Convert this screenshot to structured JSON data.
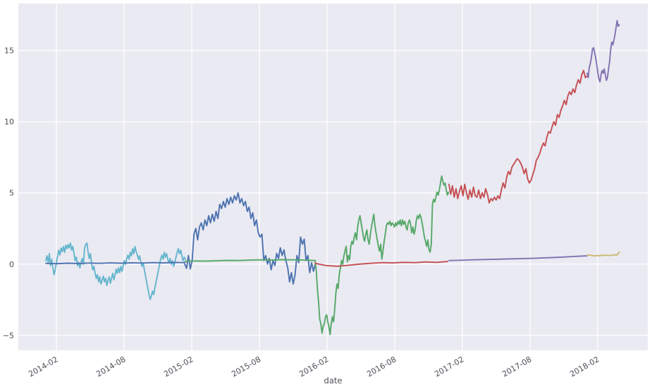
{
  "chart_data": {
    "type": "line",
    "title": "",
    "xlabel": "date",
    "ylabel": "",
    "x_unit": "months (1 = 2014-02, 49 = 2018-02)",
    "xlim": [
      -2.38,
      53.44
    ],
    "ylim": [
      -6.05,
      18.3
    ],
    "grid": true,
    "legend": false,
    "x_ticks": [
      {
        "x": 1,
        "label": "2014-02"
      },
      {
        "x": 7,
        "label": "2014-08"
      },
      {
        "x": 13,
        "label": "2015-02"
      },
      {
        "x": 19,
        "label": "2015-08"
      },
      {
        "x": 25,
        "label": "2016-02"
      },
      {
        "x": 31,
        "label": "2016-08"
      },
      {
        "x": 37,
        "label": "2017-02"
      },
      {
        "x": 43,
        "label": "2017-08"
      },
      {
        "x": 49,
        "label": "2018-02"
      }
    ],
    "y_ticks": [
      {
        "y": -5,
        "label": "−5"
      },
      {
        "y": 0,
        "label": "0"
      },
      {
        "y": 5,
        "label": "5"
      },
      {
        "y": 10,
        "label": "10"
      },
      {
        "y": 15,
        "label": "15"
      }
    ],
    "style": {
      "figure_bg": "#ffffff",
      "axes_bg": "#eaeaf2",
      "grid_color": "#ffffff",
      "grid_width": 1.25,
      "tick_color": "#4d4d57",
      "line_width": 1.9
    },
    "series": [
      {
        "name": "2014-lightblue",
        "color": "#64b5cd",
        "segments": [
          {
            "x0": 0.06,
            "dx": 0.104,
            "v": [
              0.24,
              0.58,
              0.09,
              0.73,
              -0.11,
              0.34,
              -0.26,
              -0.75,
              -0.41,
              0.09,
              0.58,
              0.98,
              0.63,
              1.13,
              0.88,
              1.23,
              0.83,
              1.33,
              1.08,
              1.38,
              1.13,
              1.48,
              0.98,
              1.23,
              0.73,
              0.24,
              0.49,
              -0.11,
              0.14,
              -0.26,
              0.09,
              0.39,
              -0.01,
              1.08,
              1.38,
              1.48,
              0.88,
              0.39,
              0.73,
              0.09,
              -0.41,
              -0.16,
              -0.65,
              -1.0,
              -0.75,
              -1.25,
              -0.9,
              -1.4,
              -1.1,
              -0.85,
              -1.25,
              -1.0,
              -1.5,
              -1.15,
              -0.9,
              -1.35,
              -1.0,
              -0.65,
              -1.1,
              -0.75,
              -0.36,
              -0.65,
              -0.26,
              -0.6,
              -0.16,
              -0.5,
              -0.11,
              0.24,
              -0.01,
              0.39,
              0.63,
              0.34,
              0.83,
              0.58,
              1.08,
              0.73,
              1.23,
              0.88,
              0.63,
              0.34,
              0.58,
              0.14,
              -0.16,
              0.09,
              -0.41,
              -0.85,
              -1.25,
              -1.74,
              -2.14,
              -2.48,
              -2.24,
              -1.89,
              -2.14,
              -1.64,
              -1.25,
              -0.85,
              -0.41,
              -0.01,
              0.39,
              0.63,
              0.34,
              0.83,
              0.49,
              0.73,
              0.34,
              0.09,
              0.39,
              -0.01,
              0.24,
              -0.16,
              0.14,
              0.49,
              0.83,
              1.08,
              0.73,
              0.98,
              0.58,
              0.24,
              0.49,
              0.34
            ]
          }
        ]
      },
      {
        "name": "2015-blue",
        "color": "#4c72b0",
        "segments": [
          {
            "x0": 0.06,
            "dx": 0.95,
            "v": [
              0.05,
              0.03,
              0.06,
              0.04,
              0.07,
              0.05,
              0.08,
              0.06,
              0.09,
              0.07,
              0.1,
              0.08,
              0.11,
              0.1
            ]
          },
          {
            "x0": 12.38,
            "dx": 0.163,
            "v": [
              0.0,
              -0.3,
              0.6,
              -0.35,
              0.25,
              2.1,
              2.5,
              1.7,
              2.6,
              2.9,
              2.4,
              3.1,
              2.7,
              3.4,
              2.9,
              3.5,
              3.0,
              3.7,
              3.2,
              4.2,
              3.9,
              4.4,
              4.0,
              4.6,
              4.2,
              4.7,
              4.3,
              4.8,
              4.5,
              5.0,
              4.3,
              4.6,
              4.1,
              4.4,
              3.7,
              4.0,
              3.2,
              3.6,
              2.7,
              3.1,
              2.2,
              1.9,
              2.1,
              0.25,
              0.6,
              0.0,
              0.4,
              -0.4,
              0.25,
              -0.1,
              0.75,
              0.4,
              1.15,
              0.6,
              1.0,
              0.25,
              -0.25,
              -1.25,
              -0.6,
              -1.4,
              -0.75,
              0.6,
              0.1,
              1.9,
              1.4,
              1.75,
              0.25,
              0.6,
              -0.6,
              0.1,
              -0.5,
              0.0
            ]
          }
        ]
      },
      {
        "name": "2016-green",
        "color": "#55a868",
        "segments": [
          {
            "x0": 12.4,
            "dx": 0.96,
            "v": [
              0.2,
              0.22,
              0.21,
              0.24,
              0.26,
              0.25,
              0.28,
              0.3,
              0.29,
              0.31,
              0.3,
              0.28,
              0.25
            ]
          },
          {
            "x0": 23.94,
            "dx": 0.102,
            "v": [
              0.25,
              -0.5,
              -1.7,
              -2.7,
              -3.86,
              -4.2,
              -4.85,
              -4.36,
              -4.2,
              -3.7,
              -3.56,
              -4.06,
              -4.36,
              -4.95,
              -4.2,
              -3.7,
              -4.06,
              -3.2,
              -2.08,
              -1.4,
              -1.7,
              -0.75,
              -0.25,
              0.25,
              0.0,
              0.6,
              0.9,
              1.25,
              0.15,
              0.6,
              0.3,
              1.25,
              1.6,
              1.4,
              1.9,
              2.2,
              1.7,
              2.6,
              3.1,
              3.4,
              2.9,
              2.4,
              1.9,
              1.6,
              2.1,
              2.4,
              1.7,
              1.4,
              2.1,
              2.6,
              3.1,
              3.5,
              2.7,
              2.2,
              1.7,
              1.25,
              0.9,
              1.4,
              0.35,
              0.9,
              1.6,
              2.1,
              2.7,
              2.9,
              2.8,
              3.0,
              2.7,
              2.9,
              2.8,
              2.6,
              2.9,
              2.7,
              3.0,
              2.8,
              3.1,
              2.7,
              3.1,
              2.8,
              3.0,
              2.6,
              2.4,
              2.9,
              3.1,
              2.8,
              2.2,
              2.6,
              2.1,
              2.4,
              3.1,
              3.4,
              3.2,
              3.5,
              3.3,
              2.9,
              2.4,
              1.9,
              1.6,
              1.25,
              1.7,
              1.0,
              0.84,
              1.4,
              4.2,
              4.55,
              4.36,
              4.7,
              5.05,
              4.85,
              5.2,
              5.69,
              6.19,
              5.84,
              5.54,
              5.69,
              5.2,
              4.85,
              5.05
            ]
          }
        ]
      },
      {
        "name": "2017-red",
        "color": "#c44e52",
        "segments": [
          {
            "x0": 23.94,
            "dx": 0.98,
            "v": [
              0.05,
              -0.1,
              -0.15,
              -0.08,
              0.0,
              0.05,
              0.1,
              0.08,
              0.12,
              0.1,
              0.15,
              0.12,
              0.18
            ]
          },
          {
            "x0": 35.81,
            "dx": 0.155,
            "v": [
              5.6,
              4.9,
              5.5,
              4.7,
              5.3,
              4.6,
              5.1,
              5.5,
              4.8,
              5.6,
              5.0,
              4.55,
              5.2,
              4.7,
              5.4,
              4.8,
              4.7,
              5.2,
              4.6,
              5.0,
              4.7,
              5.3,
              4.9,
              4.3,
              4.6,
              4.45,
              4.7,
              4.5,
              4.8,
              4.6,
              5.2,
              5.7,
              5.35,
              6.1,
              6.5,
              6.3,
              6.8,
              7.0,
              7.2,
              7.4,
              7.3,
              7.1,
              6.8,
              6.35,
              6.7,
              6.0,
              5.7,
              5.9,
              6.3,
              6.7,
              7.3,
              7.5,
              7.8,
              8.2,
              8.5,
              8.3,
              8.9,
              9.3,
              9.2,
              9.65,
              10.0,
              9.75,
              10.5,
              10.3,
              10.8,
              11.1,
              11.5,
              11.2,
              11.8,
              12.1,
              11.9,
              12.3,
              12.05,
              12.6,
              12.95,
              12.7,
              13.3,
              13.6,
              13.1,
              13.2
            ]
          }
        ]
      },
      {
        "name": "2018-purple",
        "color": "#8172b2",
        "segments": [
          {
            "x0": 35.81,
            "dx": 1.02,
            "v": [
              0.25,
              0.27,
              0.3,
              0.32,
              0.34,
              0.36,
              0.38,
              0.4,
              0.43,
              0.46,
              0.5,
              0.54,
              0.58
            ]
          },
          {
            "x0": 48.06,
            "dx": 0.095,
            "v": [
              13.4,
              13.1,
              13.8,
              14.1,
              14.5,
              15.1,
              15.2,
              14.85,
              14.5,
              14.0,
              13.5,
              13.0,
              12.8,
              13.3,
              13.6,
              13.4,
              13.7,
              13.3,
              12.9,
              13.1,
              13.7,
              14.2,
              15.1,
              15.6,
              15.4,
              15.7,
              16.1,
              16.6,
              17.1,
              16.7,
              16.8
            ]
          }
        ]
      },
      {
        "name": "2019-khaki",
        "color": "#ccb974",
        "segments": [
          {
            "x0": 48.06,
            "dx": 0.22,
            "v": [
              0.62,
              0.64,
              0.6,
              0.57,
              0.6,
              0.58,
              0.62,
              0.6,
              0.63,
              0.6,
              0.62,
              0.65,
              0.63,
              0.85
            ]
          }
        ]
      }
    ]
  }
}
